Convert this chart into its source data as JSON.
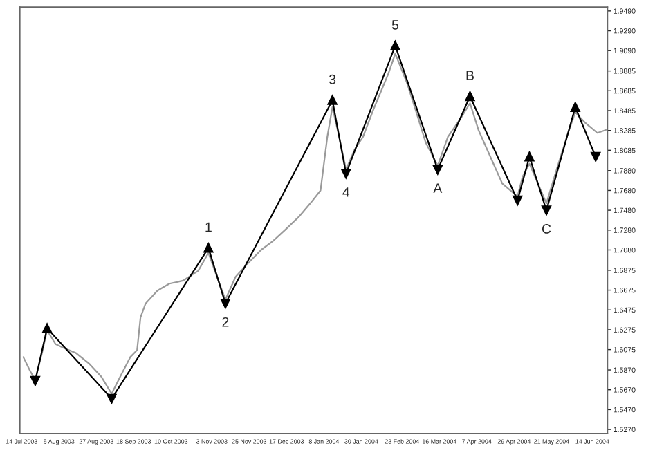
{
  "chart_data": {
    "type": "line",
    "xlim": [
      "2003-07-13",
      "2004-06-23"
    ],
    "ylim": [
      1.523,
      1.953
    ],
    "xticks": [
      {
        "value": "2003-07-14",
        "label": "14 Jul 2003"
      },
      {
        "value": "2003-08-05",
        "label": "5 Aug 2003"
      },
      {
        "value": "2003-08-27",
        "label": "27 Aug 2003"
      },
      {
        "value": "2003-09-18",
        "label": "18 Sep 2003"
      },
      {
        "value": "2003-10-10",
        "label": "10 Oct 2003"
      },
      {
        "value": "2003-11-03",
        "label": "3 Nov 2003"
      },
      {
        "value": "2003-11-25",
        "label": "25 Nov 2003"
      },
      {
        "value": "2003-12-17",
        "label": "17 Dec 2003"
      },
      {
        "value": "2004-01-08",
        "label": "8 Jan 2004"
      },
      {
        "value": "2004-01-30",
        "label": "30 Jan 2004"
      },
      {
        "value": "2004-02-23",
        "label": "23 Feb 2004"
      },
      {
        "value": "2004-03-16",
        "label": "16 Mar 2004"
      },
      {
        "value": "2004-04-07",
        "label": "7 Apr 2004"
      },
      {
        "value": "2004-04-29",
        "label": "29 Apr 2004"
      },
      {
        "value": "2004-05-21",
        "label": "21 May 2004"
      },
      {
        "value": "2004-06-14",
        "label": "14 Jun 2004"
      }
    ],
    "yticks": [
      {
        "value": 1.949,
        "label": "1.9490"
      },
      {
        "value": 1.929,
        "label": "1.9290"
      },
      {
        "value": 1.909,
        "label": "1.9090"
      },
      {
        "value": 1.8885,
        "label": "1.8885"
      },
      {
        "value": 1.8685,
        "label": "1.8685"
      },
      {
        "value": 1.8485,
        "label": "1.8485"
      },
      {
        "value": 1.8285,
        "label": "1.8285"
      },
      {
        "value": 1.8085,
        "label": "1.8085"
      },
      {
        "value": 1.788,
        "label": "1.7880"
      },
      {
        "value": 1.768,
        "label": "1.7680"
      },
      {
        "value": 1.748,
        "label": "1.7480"
      },
      {
        "value": 1.728,
        "label": "1.7280"
      },
      {
        "value": 1.708,
        "label": "1.7080"
      },
      {
        "value": 1.6875,
        "label": "1.6875"
      },
      {
        "value": 1.6675,
        "label": "1.6675"
      },
      {
        "value": 1.6475,
        "label": "1.6475"
      },
      {
        "value": 1.6275,
        "label": "1.6275"
      },
      {
        "value": 1.6075,
        "label": "1.6075"
      },
      {
        "value": 1.587,
        "label": "1.5870"
      },
      {
        "value": 1.567,
        "label": "1.5670"
      },
      {
        "value": 1.547,
        "label": "1.5470"
      },
      {
        "value": 1.527,
        "label": "1.5270"
      }
    ],
    "grid": false,
    "series": [
      {
        "color": "#9a9a9a",
        "marker": "none",
        "x": [
          "2003-07-15",
          "2003-07-19",
          "2003-07-22",
          "2003-07-26",
          "2003-07-29",
          "2003-08-03",
          "2003-08-08",
          "2003-08-15",
          "2003-08-23",
          "2003-08-30",
          "2003-09-05",
          "2003-09-10",
          "2003-09-16",
          "2003-09-20",
          "2003-09-22",
          "2003-09-25",
          "2003-10-02",
          "2003-10-09",
          "2003-10-17",
          "2003-10-26",
          "2003-11-01",
          "2003-11-06",
          "2003-11-11",
          "2003-11-17",
          "2003-11-24",
          "2003-12-02",
          "2003-12-09",
          "2003-12-16",
          "2003-12-24",
          "2003-12-31",
          "2004-01-06",
          "2004-01-10",
          "2004-01-13",
          "2004-01-17",
          "2004-01-21",
          "2004-01-26",
          "2004-01-31",
          "2004-02-06",
          "2004-02-15",
          "2004-02-19",
          "2004-02-26",
          "2004-03-02",
          "2004-03-08",
          "2004-03-15",
          "2004-03-21",
          "2004-03-29",
          "2004-04-03",
          "2004-04-08",
          "2004-04-15",
          "2004-04-22",
          "2004-05-01",
          "2004-05-04",
          "2004-05-08",
          "2004-05-14",
          "2004-05-18",
          "2004-05-24",
          "2004-05-30",
          "2004-06-04",
          "2004-06-10",
          "2004-06-17",
          "2004-06-22"
        ],
        "values": [
          1.6,
          1.586,
          1.577,
          1.604,
          1.627,
          1.613,
          1.609,
          1.604,
          1.593,
          1.58,
          1.563,
          1.58,
          1.6,
          1.607,
          1.64,
          1.654,
          1.667,
          1.674,
          1.677,
          1.687,
          1.705,
          1.681,
          1.658,
          1.681,
          1.694,
          1.708,
          1.717,
          1.728,
          1.741,
          1.755,
          1.768,
          1.822,
          1.852,
          1.822,
          1.789,
          1.809,
          1.822,
          1.849,
          1.886,
          1.906,
          1.876,
          1.849,
          1.816,
          1.793,
          1.822,
          1.842,
          1.856,
          1.829,
          1.802,
          1.775,
          1.762,
          1.782,
          1.795,
          1.771,
          1.755,
          1.789,
          1.822,
          1.847,
          1.836,
          1.826,
          1.829
        ]
      },
      {
        "color": "#000000",
        "marker": "triangle",
        "x": [
          "2003-07-22",
          "2003-07-29",
          "2003-09-05",
          "2003-11-01",
          "2003-11-11",
          "2004-01-13",
          "2004-01-21",
          "2004-02-19",
          "2004-03-15",
          "2004-04-03",
          "2004-05-01",
          "2004-05-08",
          "2004-05-18",
          "2004-06-04",
          "2004-06-16"
        ],
        "values": [
          1.576,
          1.629,
          1.558,
          1.71,
          1.654,
          1.859,
          1.785,
          1.914,
          1.789,
          1.863,
          1.758,
          1.802,
          1.748,
          1.852,
          1.802
        ]
      }
    ],
    "annotations": [
      {
        "text": "1",
        "x": "2003-11-01",
        "y": 1.71
      },
      {
        "text": "2",
        "x": "2003-11-11",
        "y": 1.654
      },
      {
        "text": "3",
        "x": "2004-01-13",
        "y": 1.859
      },
      {
        "text": "4",
        "x": "2004-01-21",
        "y": 1.785
      },
      {
        "text": "5",
        "x": "2004-02-19",
        "y": 1.914
      },
      {
        "text": "A",
        "x": "2004-03-15",
        "y": 1.789
      },
      {
        "text": "B",
        "x": "2004-04-03",
        "y": 1.863
      },
      {
        "text": "C",
        "x": "2004-05-18",
        "y": 1.748
      }
    ]
  }
}
